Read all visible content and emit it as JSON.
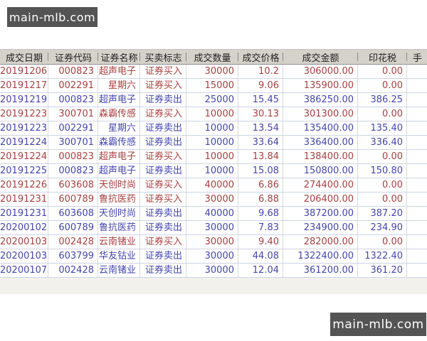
{
  "watermark": {
    "text": "main-mlb.com",
    "bg": "#545454",
    "fg": "#ffffff"
  },
  "colors": {
    "buy_text": "#a64040",
    "sell_text": "#4545ac",
    "header_bg": "#d5d2cb",
    "row_grid": "#cdd3e2",
    "footer_bg": "#f3f1ec",
    "watermark_bg": "#545454"
  },
  "table": {
    "columns": [
      {
        "key": "date",
        "label": "成交日期"
      },
      {
        "key": "code",
        "label": "证券代码"
      },
      {
        "key": "name",
        "label": "证券名称"
      },
      {
        "key": "flag",
        "label": "买卖标志"
      },
      {
        "key": "qty",
        "label": "成交数量"
      },
      {
        "key": "price",
        "label": "成交价格"
      },
      {
        "key": "amount",
        "label": "成交金额"
      },
      {
        "key": "stamp",
        "label": "印花税"
      },
      {
        "key": "fee",
        "label": "手"
      }
    ],
    "rows": [
      {
        "side": "buy",
        "date": "20191206",
        "code": "000823",
        "name": "超声电子",
        "flag": "证券买入",
        "qty": "30000",
        "price": "10.2",
        "amount": "306000.00",
        "stamp": "0.00",
        "fee": ""
      },
      {
        "side": "buy",
        "date": "20191217",
        "code": "002291",
        "name": "星期六",
        "flag": "证券买入",
        "qty": "15000",
        "price": "9.06",
        "amount": "135900.00",
        "stamp": "0.00",
        "fee": ""
      },
      {
        "side": "sell",
        "date": "20191219",
        "code": "000823",
        "name": "超声电子",
        "flag": "证券卖出",
        "qty": "25000",
        "price": "15.45",
        "amount": "386250.00",
        "stamp": "386.25",
        "fee": ""
      },
      {
        "side": "buy",
        "date": "20191223",
        "code": "300701",
        "name": "森霸传感",
        "flag": "证券买入",
        "qty": "10000",
        "price": "30.13",
        "amount": "301300.00",
        "stamp": "0.00",
        "fee": ""
      },
      {
        "side": "sell",
        "date": "20191223",
        "code": "002291",
        "name": "星期六",
        "flag": "证券卖出",
        "qty": "10000",
        "price": "13.54",
        "amount": "135400.00",
        "stamp": "135.40",
        "fee": ""
      },
      {
        "side": "sell",
        "date": "20191224",
        "code": "300701",
        "name": "森霸传感",
        "flag": "证券卖出",
        "qty": "10000",
        "price": "33.64",
        "amount": "336400.00",
        "stamp": "336.40",
        "fee": ""
      },
      {
        "side": "buy",
        "date": "20191224",
        "code": "000823",
        "name": "超声电子",
        "flag": "证券买入",
        "qty": "10000",
        "price": "13.84",
        "amount": "138400.00",
        "stamp": "0.00",
        "fee": ""
      },
      {
        "side": "sell",
        "date": "20191225",
        "code": "000823",
        "name": "超声电子",
        "flag": "证券卖出",
        "qty": "10000",
        "price": "15.08",
        "amount": "150800.00",
        "stamp": "150.80",
        "fee": ""
      },
      {
        "side": "buy",
        "date": "20191226",
        "code": "603608",
        "name": "天创时尚",
        "flag": "证券买入",
        "qty": "40000",
        "price": "6.86",
        "amount": "274400.00",
        "stamp": "0.00",
        "fee": ""
      },
      {
        "side": "buy",
        "date": "20191231",
        "code": "600789",
        "name": "鲁抗医药",
        "flag": "证券买入",
        "qty": "30000",
        "price": "6.88",
        "amount": "206400.00",
        "stamp": "0.00",
        "fee": ""
      },
      {
        "side": "sell",
        "date": "20191231",
        "code": "603608",
        "name": "天创时尚",
        "flag": "证券卖出",
        "qty": "40000",
        "price": "9.68",
        "amount": "387200.00",
        "stamp": "387.20",
        "fee": ""
      },
      {
        "side": "sell",
        "date": "20200102",
        "code": "600789",
        "name": "鲁抗医药",
        "flag": "证券卖出",
        "qty": "30000",
        "price": "7.83",
        "amount": "234900.00",
        "stamp": "234.90",
        "fee": ""
      },
      {
        "side": "buy",
        "date": "20200103",
        "code": "002428",
        "name": "云南锗业",
        "flag": "证券买入",
        "qty": "30000",
        "price": "9.40",
        "amount": "282000.00",
        "stamp": "0.00",
        "fee": ""
      },
      {
        "side": "sell",
        "date": "20200103",
        "code": "603799",
        "name": "华友钴业",
        "flag": "证券卖出",
        "qty": "30000",
        "price": "44.08",
        "amount": "1322400.00",
        "stamp": "1322.40",
        "fee": ""
      },
      {
        "side": "sell",
        "date": "20200107",
        "code": "002428",
        "name": "云南锗业",
        "flag": "证券卖出",
        "qty": "30000",
        "price": "12.04",
        "amount": "361200.00",
        "stamp": "361.20",
        "fee": ""
      }
    ]
  }
}
